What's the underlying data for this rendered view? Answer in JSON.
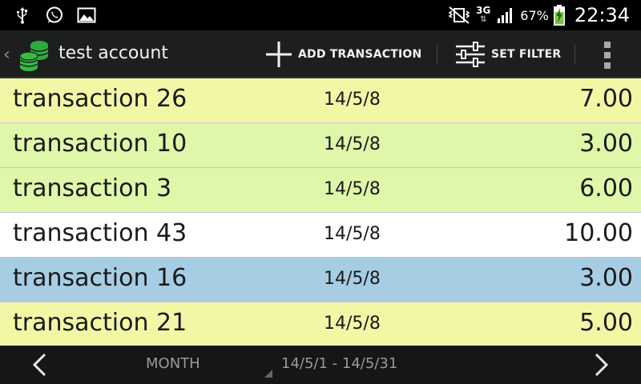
{
  "status_bar": {
    "left_icons": [
      "usb-icon",
      "whatsapp-icon",
      "gallery-icon"
    ],
    "right_icons": [
      "vibrate-icon",
      "3g-data-icon",
      "signal-icon",
      "battery-charging-icon"
    ],
    "network": "3G",
    "battery": "67%",
    "time": "22:34",
    "battery_color": "#7ec242"
  },
  "action_bar": {
    "title": "test account",
    "add_transaction_label": "ADD TRANSACTION",
    "set_filter_label": "SET FILTER"
  },
  "transactions": [
    {
      "name": "transaction 26",
      "date": "14/5/8",
      "amount": "7.00",
      "color": "#f2f7a6"
    },
    {
      "name": "transaction 10",
      "date": "14/5/8",
      "amount": "3.00",
      "color": "#dff7a8"
    },
    {
      "name": "transaction 3",
      "date": "14/5/8",
      "amount": "6.00",
      "color": "#dff7a8"
    },
    {
      "name": "transaction 43",
      "date": "14/5/8",
      "amount": "10.00",
      "color": "#ffffff"
    },
    {
      "name": "transaction 16",
      "date": "14/5/8",
      "amount": "3.00",
      "color": "#a6cde4"
    },
    {
      "name": "transaction 21",
      "date": "14/5/8",
      "amount": "5.00",
      "color": "#f2f7a6"
    }
  ],
  "bottom_bar": {
    "period": "MONTH",
    "date_range": "14/5/1 - 14/5/31"
  },
  "colors": {
    "action_bar_bg": "#1d1f1e",
    "logo_green": "#2eaa3c"
  }
}
